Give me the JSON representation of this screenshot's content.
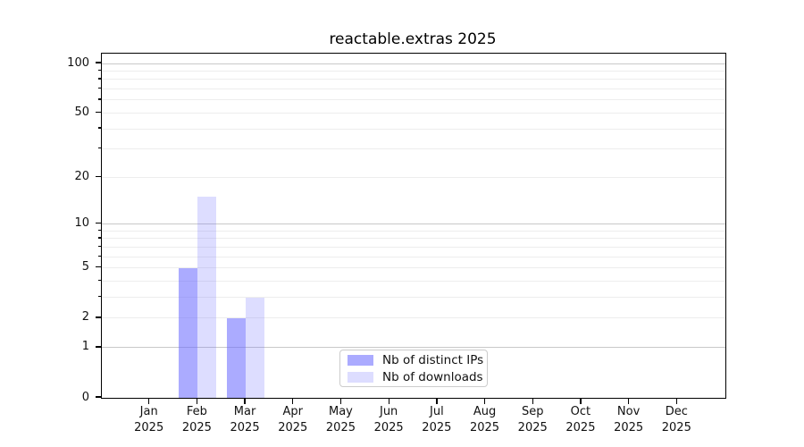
{
  "title": "reactable.extras 2025",
  "chart_data": {
    "type": "bar",
    "title": "reactable.extras 2025",
    "scale": "log10(1+x)",
    "year_label": "2025",
    "categories": [
      "Jan",
      "Feb",
      "Mar",
      "Apr",
      "May",
      "Jun",
      "Jul",
      "Aug",
      "Sep",
      "Oct",
      "Nov",
      "Dec"
    ],
    "series": [
      {
        "name": "Nb of distinct IPs",
        "color": "rgba(102,102,255,0.55)",
        "values": [
          0,
          5,
          2,
          0,
          0,
          0,
          0,
          0,
          0,
          0,
          0,
          0
        ]
      },
      {
        "name": "Nb of downloads",
        "color": "rgba(102,102,255,0.22)",
        "values": [
          0,
          15,
          3,
          0,
          0,
          0,
          0,
          0,
          0,
          0,
          0,
          0
        ]
      }
    ],
    "y_axis": {
      "ticks": [
        0,
        1,
        2,
        5,
        10,
        20,
        50,
        100
      ],
      "max": 100,
      "minor_gridlines": [
        2,
        3,
        4,
        5,
        6,
        7,
        8,
        9,
        20,
        30,
        40,
        50,
        60,
        70,
        80,
        90
      ],
      "major_gridlines": [
        1,
        10,
        100
      ]
    },
    "xlabel": "",
    "ylabel": "",
    "legend_position": "bottom-center",
    "grid": true
  },
  "colors": {
    "grid_minor": "#ededed",
    "grid_major": "#c9c9c9",
    "spine": "#000000",
    "text": "#111111",
    "background": "#ffffff"
  }
}
